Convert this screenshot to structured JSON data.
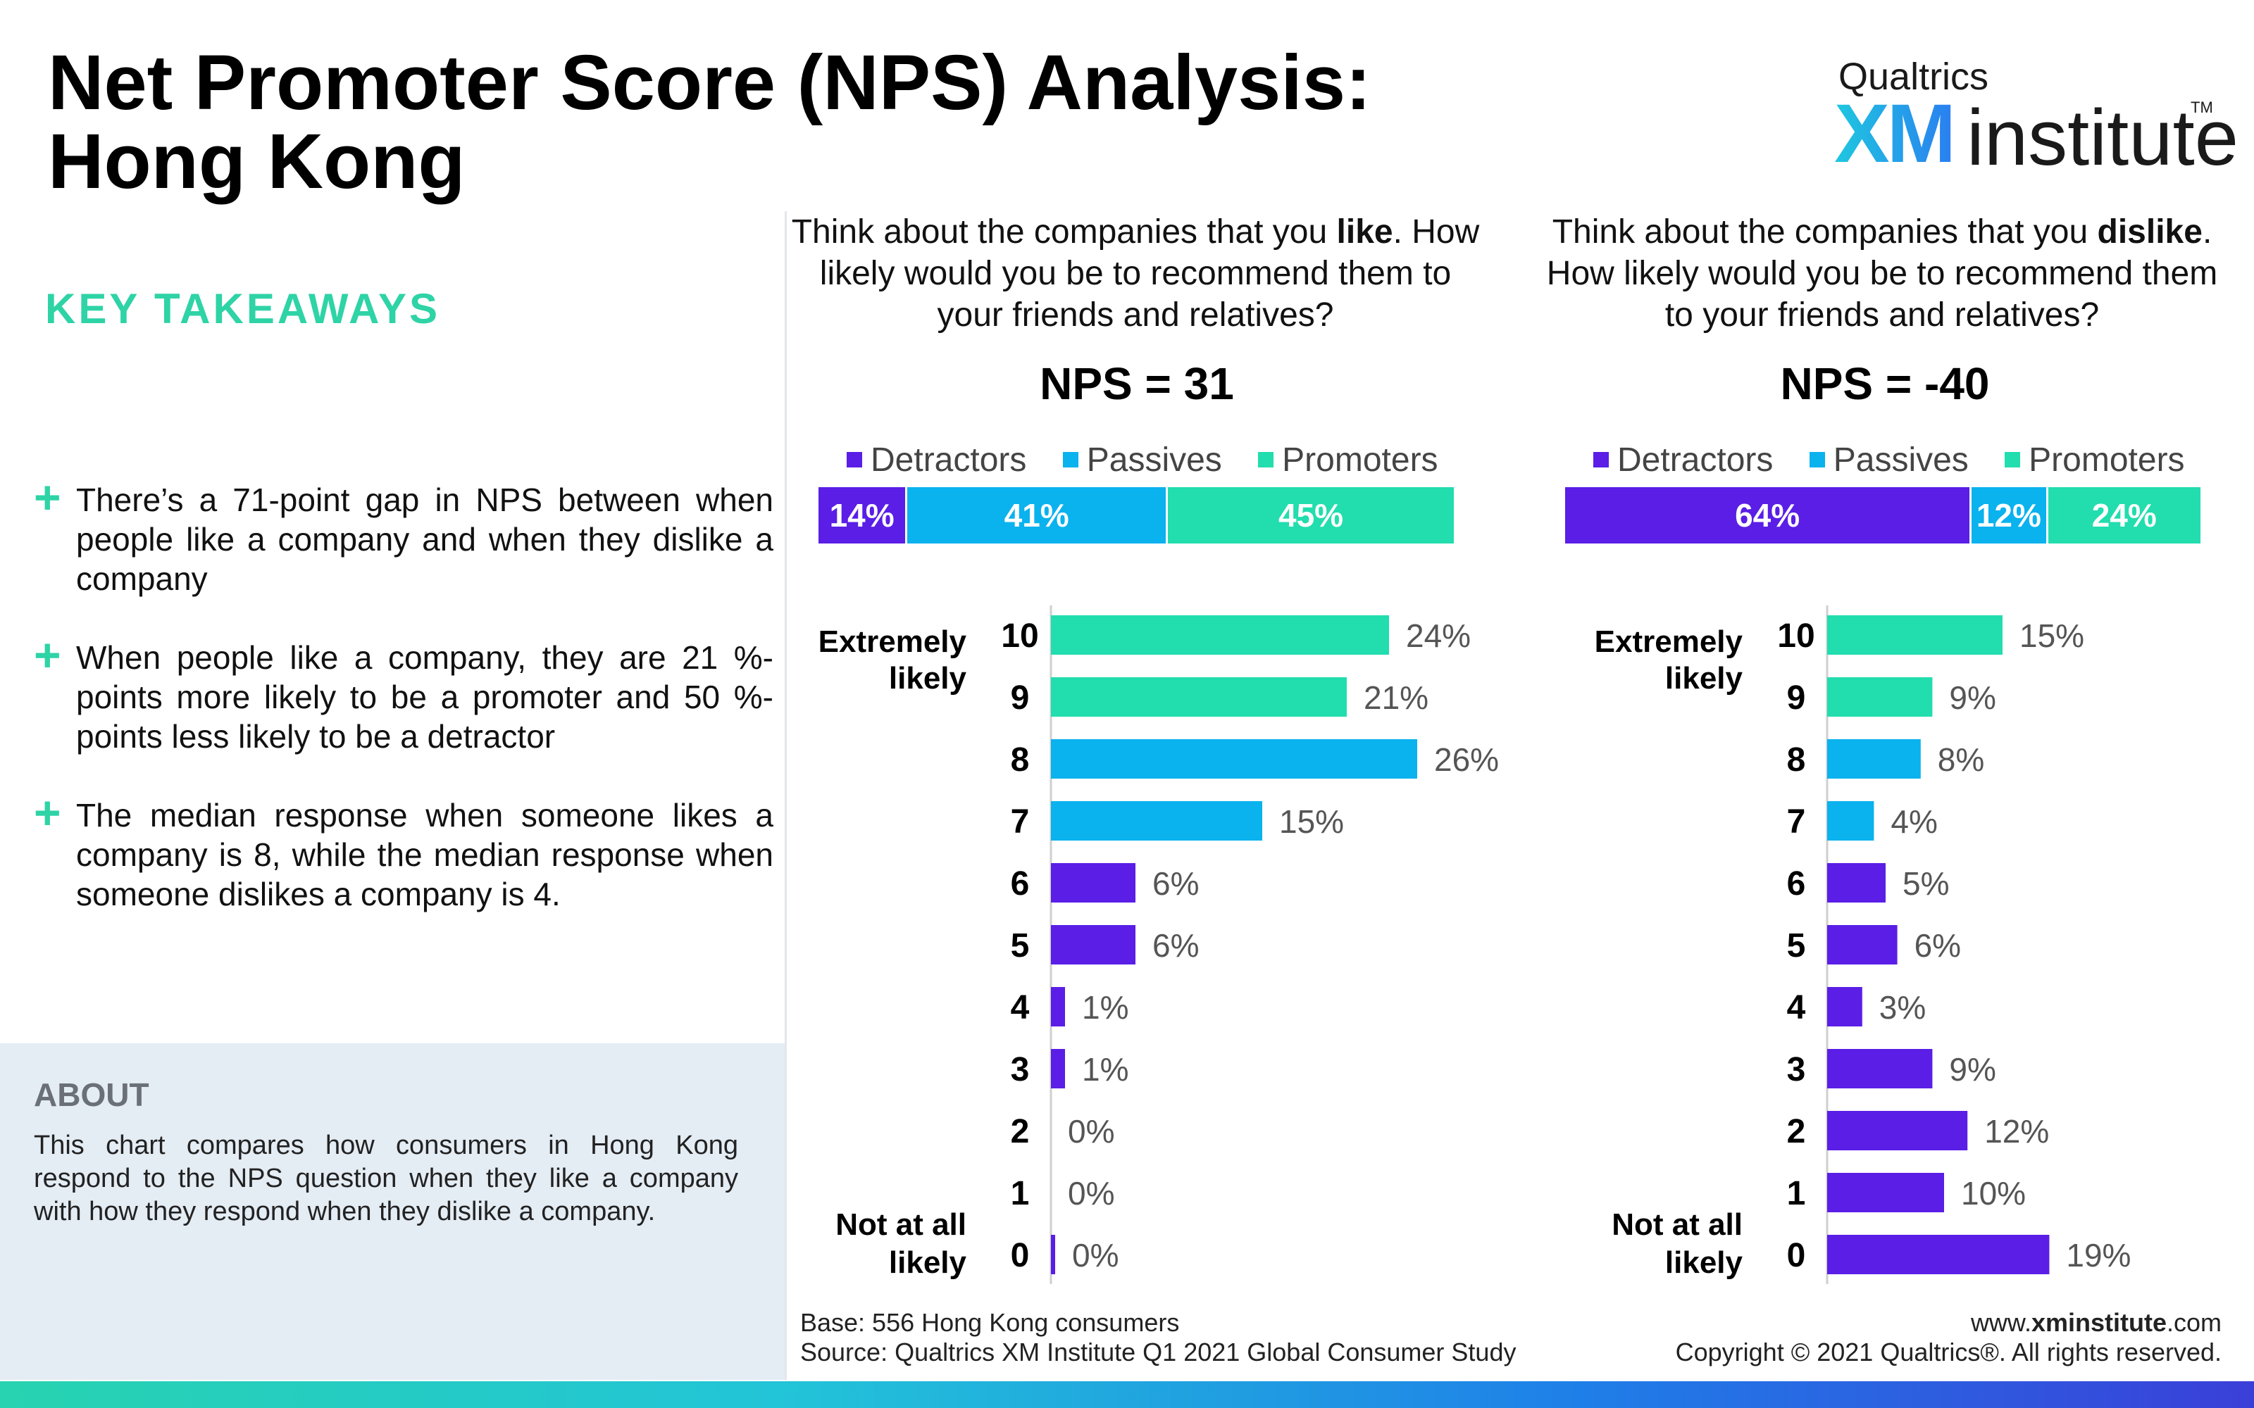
{
  "title_line1": "Net Promoter Score (NPS) Analysis:",
  "title_line2": "Hong Kong",
  "logo": {
    "brand": "Qualtrics",
    "xm": "XM",
    "institute": "institute",
    "tm": "TM"
  },
  "key_takeaways": {
    "heading": "KEY TAKEAWAYS",
    "items": [
      "There’s a 71-point gap in NPS between when people like a company and when they dislike a company",
      "When people like a company, they are 21 %-points more likely to be a promoter and 50 %-points less likely to be a detractor",
      "The median response when someone likes a company is 8, while the median response when someone dislikes a company is 4."
    ]
  },
  "about": {
    "heading": "ABOUT",
    "text": "This chart compares how consumers in Hong Kong respond to the NPS question when they like a company with how they respond when they dislike a company."
  },
  "footer": {
    "base": "Base: 556 Hong Kong consumers",
    "source": "Source: Qualtrics XM Institute Q1 2021 Global Consumer Study",
    "website_prefix": "www.",
    "website_bold": "xminstitute",
    "website_suffix": ".com",
    "copyright": "Copyright © 2021 Qualtrics®. All rights reserved."
  },
  "colors": {
    "detractors": "#5a1ee6",
    "passives": "#0ab2ee",
    "promoters": "#22ddae",
    "accent": "#2ed3a6"
  },
  "chart_data": [
    {
      "type": "bar",
      "question_pre": "Think about the companies that you ",
      "question_bold": "like",
      "question_post": ". How likely would you be to recommend them to your friends and relatives?",
      "nps_label": "NPS = 31",
      "legend": [
        "Detractors",
        "Passives",
        "Promoters"
      ],
      "stacked": {
        "detractors": 14,
        "passives": 41,
        "promoters": 45,
        "labels": [
          "14%",
          "41%",
          "45%"
        ]
      },
      "top_label": [
        "Extremely",
        "likely"
      ],
      "bottom_label": [
        "Not at all",
        "likely"
      ],
      "categories": [
        "10",
        "9",
        "8",
        "7",
        "6",
        "5",
        "4",
        "3",
        "2",
        "1",
        "0"
      ],
      "values": [
        24,
        21,
        26,
        15,
        6,
        6,
        1,
        1,
        0,
        0,
        0
      ],
      "value_labels": [
        "24%",
        "21%",
        "26%",
        "15%",
        "6%",
        "6%",
        "1%",
        "1%",
        "0%",
        "0%",
        "0%"
      ],
      "groups": [
        "promoters",
        "promoters",
        "passives",
        "passives",
        "detractors",
        "detractors",
        "detractors",
        "detractors",
        "detractors",
        "detractors",
        "detractors"
      ]
    },
    {
      "type": "bar",
      "question_pre": "Think about the companies that you ",
      "question_bold": "dislike",
      "question_post": ". How likely would you be to recommend them to your friends and relatives?",
      "nps_label": "NPS = -40",
      "legend": [
        "Detractors",
        "Passives",
        "Promoters"
      ],
      "stacked": {
        "detractors": 64,
        "passives": 12,
        "promoters": 24,
        "labels": [
          "64%",
          "12%",
          "24%"
        ]
      },
      "top_label": [
        "Extremely",
        "likely"
      ],
      "bottom_label": [
        "Not at all",
        "likely"
      ],
      "categories": [
        "10",
        "9",
        "8",
        "7",
        "6",
        "5",
        "4",
        "3",
        "2",
        "1",
        "0"
      ],
      "values": [
        15,
        9,
        8,
        4,
        5,
        6,
        3,
        9,
        12,
        10,
        19
      ],
      "value_labels": [
        "15%",
        "9%",
        "8%",
        "4%",
        "5%",
        "6%",
        "3%",
        "9%",
        "12%",
        "10%",
        "19%"
      ],
      "groups": [
        "promoters",
        "promoters",
        "passives",
        "passives",
        "detractors",
        "detractors",
        "detractors",
        "detractors",
        "detractors",
        "detractors",
        "detractors"
      ]
    }
  ]
}
